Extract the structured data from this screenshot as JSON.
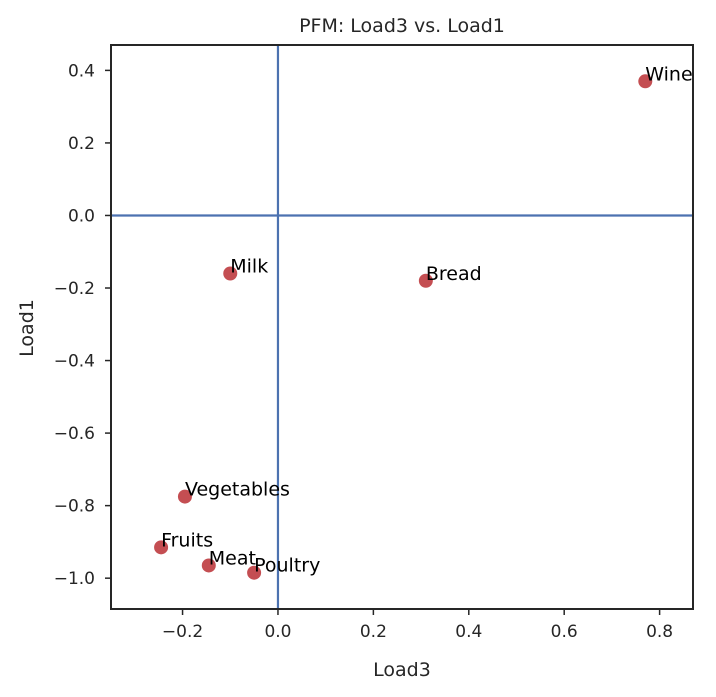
{
  "chart_data": {
    "type": "scatter",
    "title": "PFM: Load3 vs. Load1",
    "xlabel": "Load3",
    "ylabel": "Load1",
    "xlim": [
      -0.35,
      0.87
    ],
    "ylim": [
      -1.085,
      0.47
    ],
    "x_ticks": [
      -0.2,
      0.0,
      0.2,
      0.4,
      0.6,
      0.8
    ],
    "x_tick_labels": [
      "−0.2",
      "0.0",
      "0.2",
      "0.4",
      "0.6",
      "0.8"
    ],
    "y_ticks": [
      0.4,
      0.2,
      0.0,
      -0.2,
      -0.4,
      -0.6,
      -0.8,
      -1.0
    ],
    "y_tick_labels": [
      "0.4",
      "0.2",
      "0.0",
      "−0.2",
      "−0.4",
      "−0.6",
      "−0.8",
      "−1.0"
    ],
    "grid": false,
    "reference_lines": {
      "x": 0.0,
      "y": 0.0
    },
    "points": [
      {
        "label": "Wine",
        "x": 0.77,
        "y": 0.37
      },
      {
        "label": "Milk",
        "x": -0.1,
        "y": -0.16
      },
      {
        "label": "Bread",
        "x": 0.31,
        "y": -0.18
      },
      {
        "label": "Vegetables",
        "x": -0.195,
        "y": -0.775
      },
      {
        "label": "Fruits",
        "x": -0.245,
        "y": -0.915
      },
      {
        "label": "Meat",
        "x": -0.145,
        "y": -0.965
      },
      {
        "label": "Poultry",
        "x": -0.05,
        "y": -0.985
      }
    ],
    "colors": {
      "point": "#c44e52",
      "reference_line": "#4c72b0",
      "frame": "#262626"
    }
  }
}
